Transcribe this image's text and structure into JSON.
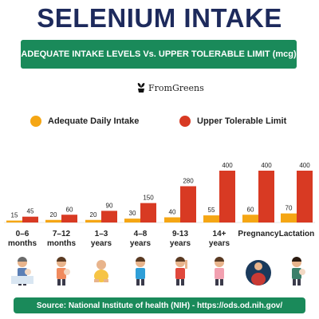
{
  "header": {
    "title": "SELENIUM INTAKE",
    "banner": "ADEQUATE INTAKE LEVELS Vs. UPPER TOLERABLE LIMIT (mcg)"
  },
  "brand": {
    "name": "FromGreens",
    "icon": "plant-pot-icon"
  },
  "legend": [
    {
      "label": "Adequate Daily Intake",
      "color": "#f5a614"
    },
    {
      "label": "Upper Tolerable Limit",
      "color": "#d83a23"
    }
  ],
  "chart_data": {
    "type": "bar",
    "categories": [
      [
        "0–6",
        "months"
      ],
      [
        "7–12",
        "months"
      ],
      [
        "1–3",
        "years"
      ],
      [
        "4–8",
        "years"
      ],
      [
        "9-13",
        "years"
      ],
      [
        "14+",
        "years"
      ],
      [
        "Pregnancy"
      ],
      [
        "Lactation"
      ]
    ],
    "series": [
      {
        "name": "Adequate Daily Intake",
        "values": [
          15,
          20,
          20,
          30,
          40,
          55,
          60,
          70
        ],
        "color": "#f5a614"
      },
      {
        "name": "Upper Tolerable Limit",
        "values": [
          45,
          60,
          90,
          150,
          280,
          400,
          400,
          400
        ],
        "color": "#d83a23"
      }
    ],
    "xlabel": "",
    "ylabel": "",
    "ylim": [
      0,
      400
    ],
    "grid": false,
    "legend_position": "top"
  },
  "illustrations": [
    "adult-with-baby-icon",
    "mother-with-baby-icon",
    "toddler-icon",
    "boy-icon",
    "child-waving-icon",
    "teen-girl-icon",
    "pregnant-woman-icon",
    "woman-holding-baby-icon"
  ],
  "footer": {
    "source": "Source: National Institute of health (NIH) - https://ods.od.nih.gov/"
  }
}
